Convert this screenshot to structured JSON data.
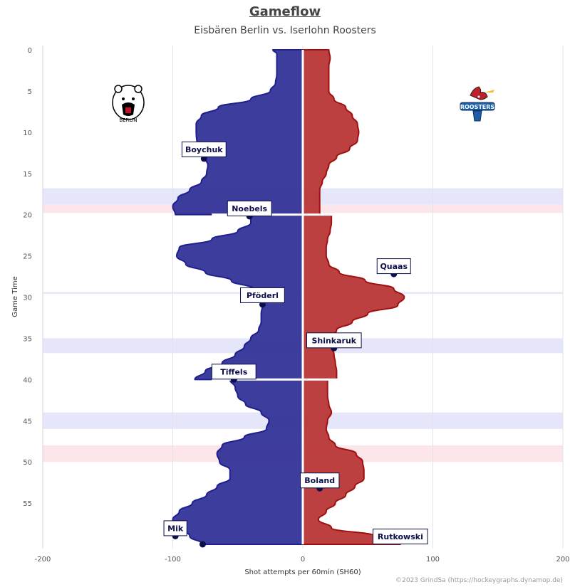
{
  "chart_data": {
    "type": "area",
    "title": "Gameflow",
    "subtitle": "Eisbären Berlin vs. Iserlohn Roosters",
    "xlabel": "Shot attempts per 60min (SH60)",
    "ylabel": "Game Time",
    "xlim": [
      -200,
      200
    ],
    "ylim": [
      0,
      60
    ],
    "x_ticks": [
      -200,
      -100,
      0,
      100,
      200
    ],
    "y_ticks": [
      0,
      5,
      10,
      15,
      20,
      25,
      30,
      35,
      40,
      45,
      50,
      55
    ],
    "grid": "vertical",
    "teams": {
      "home": {
        "name": "Eisbären Berlin",
        "logo_text": "BERLIN",
        "color": "#1f1f8f",
        "fill": "#2e2e96"
      },
      "away": {
        "name": "Iserlohn Roosters",
        "logo_text": "ROOSTERS",
        "color": "#a01010",
        "fill": "#b83232"
      }
    },
    "series": [
      {
        "name": "Eisbären Berlin",
        "side": "left",
        "periods": [
          {
            "t": [
              0,
              0.5,
              1,
              3,
              4,
              5,
              6,
              7,
              8,
              9,
              10,
              12,
              13,
              14,
              15,
              16,
              17,
              18,
              19,
              20
            ],
            "v": [
              -23,
              -20,
              -20,
              -20,
              -21,
              -25,
              -40,
              -65,
              -78,
              -82,
              -82,
              -81,
              -76,
              -73,
              -74,
              -78,
              -87,
              -96,
              -100,
              -98
            ]
          },
          {
            "t": [
              20,
              21,
              22,
              23,
              24,
              25,
              26,
              27,
              28,
              29,
              30,
              31,
              32,
              33,
              34,
              35,
              36,
              37,
              38,
              39,
              40
            ],
            "v": [
              -40,
              -40,
              -50,
              -70,
              -95,
              -97,
              -90,
              -75,
              -55,
              -38,
              -33,
              -31,
              -32,
              -32,
              -34,
              -40,
              -45,
              -52,
              -62,
              -75,
              -83
            ]
          },
          {
            "t": [
              40,
              41,
              42,
              43,
              44,
              45,
              46,
              47,
              48,
              49,
              50,
              51,
              52,
              53,
              54,
              55,
              56,
              57,
              58,
              59,
              60
            ],
            "v": [
              -56,
              -52,
              -50,
              -44,
              -32,
              -26,
              -28,
              -45,
              -62,
              -66,
              -64,
              -56,
              -56,
              -66,
              -74,
              -85,
              -95,
              -100,
              -95,
              -87,
              -77
            ]
          }
        ]
      },
      {
        "name": "Iserlohn Roosters",
        "side": "right",
        "periods": [
          {
            "t": [
              0,
              1,
              2,
              3,
              4,
              5,
              6,
              7,
              8,
              9,
              10,
              11,
              12,
              13,
              14,
              15,
              16,
              17,
              18,
              19,
              20
            ],
            "v": [
              20,
              21,
              20,
              20,
              20,
              20,
              24,
              33,
              38,
              42,
              43,
              42,
              36,
              26,
              20,
              18,
              15,
              13,
              13,
              13,
              13
            ]
          },
          {
            "t": [
              20,
              21,
              22,
              23,
              24,
              25,
              26,
              27,
              28,
              29,
              30,
              31,
              32,
              33,
              34,
              35,
              36,
              37,
              38,
              39,
              40
            ],
            "v": [
              22,
              22,
              21,
              19,
              18,
              18,
              20,
              28,
              48,
              70,
              78,
              73,
              50,
              38,
              26,
              20,
              22,
              24,
              25,
              26,
              26
            ]
          },
          {
            "t": [
              40,
              41,
              42,
              43,
              44,
              45,
              46,
              47,
              48,
              49,
              50,
              51,
              52,
              53,
              54,
              55,
              56,
              57,
              58,
              59,
              60
            ],
            "v": [
              19,
              19,
              19,
              20,
              22,
              19,
              18,
              20,
              25,
              41,
              46,
              47,
              47,
              40,
              33,
              25,
              18,
              12,
              22,
              55,
              75
            ]
          }
        ]
      }
    ],
    "goals": [
      {
        "player": "Boychuk",
        "x": -76,
        "t": 13.2,
        "side": "left"
      },
      {
        "player": "Noebels",
        "x": -41,
        "t": 20.2,
        "side": "left"
      },
      {
        "player": "Pföderl",
        "x": -31,
        "t": 30.9,
        "side": "left"
      },
      {
        "player": "Tiffels",
        "x": -53,
        "t": 40.0,
        "side": "left"
      },
      {
        "player": "Mik",
        "x": -98,
        "t": 59.0,
        "side": "left"
      },
      {
        "player": "Rutkowski",
        "x": -77,
        "t": 60.0,
        "side": "left"
      },
      {
        "player": "Quaas",
        "x": 70,
        "t": 27.2,
        "side": "right"
      },
      {
        "player": "Shinkaruk",
        "x": 24,
        "t": 36.2,
        "side": "right"
      },
      {
        "player": "Boland",
        "x": 13,
        "t": 53.2,
        "side": "right"
      }
    ],
    "bands": [
      {
        "from": 16.8,
        "to": 18.8,
        "color": "#e6e6fb"
      },
      {
        "from": 18.8,
        "to": 19.8,
        "color": "#fde6ea"
      },
      {
        "from": 29.4,
        "to": 29.6,
        "color": "#e6e6fb"
      },
      {
        "from": 35.0,
        "to": 36.8,
        "color": "#e6e6fb"
      },
      {
        "from": 44.0,
        "to": 46.0,
        "color": "#e6e6fb"
      },
      {
        "from": 48.0,
        "to": 50.0,
        "color": "#fde6ea"
      }
    ]
  },
  "credit": "©2023 GrindSa (https://hockeygraphs.dynamop.de)"
}
